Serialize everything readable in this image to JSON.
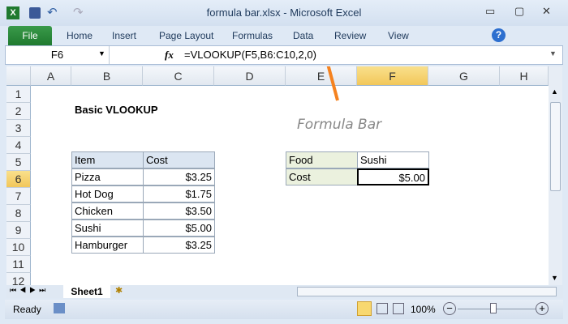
{
  "window": {
    "title": "formula bar.xlsx - Microsoft Excel"
  },
  "ribbon": {
    "file": "File",
    "tabs": [
      "Home",
      "Insert",
      "Page Layout",
      "Formulas",
      "Data",
      "Review",
      "View"
    ]
  },
  "formula_bar": {
    "name_box": "F6",
    "fx": "fx",
    "formula": "=VLOOKUP(F5,B6:C10,2,0)"
  },
  "annotation": {
    "text": "Formula Bar",
    "arrow_color": "#f5821f"
  },
  "columns": [
    "A",
    "B",
    "C",
    "D",
    "E",
    "F",
    "G",
    "H"
  ],
  "selected_column": "F",
  "selected_row": "6",
  "rows": [
    "1",
    "2",
    "3",
    "4",
    "5",
    "6",
    "7",
    "8",
    "9",
    "10",
    "11",
    "12"
  ],
  "sheet": {
    "title": "Basic VLOOKUP",
    "table_headers": [
      "Item",
      "Cost"
    ],
    "table_rows": [
      [
        "Pizza",
        "$3.25"
      ],
      [
        "Hot Dog",
        "$1.75"
      ],
      [
        "Chicken",
        "$3.50"
      ],
      [
        "Sushi",
        "$5.00"
      ],
      [
        "Hamburger",
        "$3.25"
      ]
    ],
    "lookup": [
      [
        "Food",
        "Sushi"
      ],
      [
        "Cost",
        "$5.00"
      ]
    ]
  },
  "sheet_tabs": [
    "Sheet1"
  ],
  "status": {
    "ready": "Ready",
    "zoom": "100%"
  }
}
